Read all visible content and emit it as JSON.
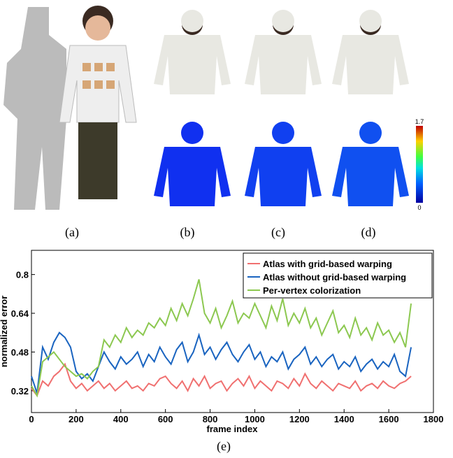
{
  "panel_captions": [
    "(a)",
    "(b)",
    "(c)",
    "(d)"
  ],
  "colorbar_ticks": [
    0,
    1.7
  ],
  "chart_caption": "(e)",
  "chart_data": {
    "type": "line",
    "xlabel": "frame index",
    "ylabel": "normalized error",
    "xlim": [
      0,
      1800
    ],
    "xticks": [
      0,
      200,
      400,
      600,
      800,
      1000,
      1200,
      1400,
      1600,
      1800
    ],
    "ylim": [
      0.23,
      0.9
    ],
    "yticks": [
      0.32,
      0.48,
      0.64,
      0.8
    ],
    "legend": "upper right",
    "x": [
      0,
      25,
      50,
      75,
      100,
      125,
      150,
      175,
      200,
      225,
      250,
      275,
      300,
      325,
      350,
      375,
      400,
      425,
      450,
      475,
      500,
      525,
      550,
      575,
      600,
      625,
      650,
      675,
      700,
      725,
      750,
      775,
      800,
      825,
      850,
      875,
      900,
      925,
      950,
      975,
      1000,
      1025,
      1050,
      1075,
      1100,
      1125,
      1150,
      1175,
      1200,
      1225,
      1250,
      1275,
      1300,
      1325,
      1350,
      1375,
      1400,
      1425,
      1450,
      1475,
      1500,
      1525,
      1550,
      1575,
      1600,
      1625,
      1650,
      1675,
      1700
    ],
    "series": [
      {
        "name": "Atlas with grid-based warping",
        "color": "#f07070",
        "values": [
          0.33,
          0.3,
          0.36,
          0.34,
          0.38,
          0.4,
          0.43,
          0.36,
          0.33,
          0.35,
          0.32,
          0.34,
          0.36,
          0.33,
          0.35,
          0.32,
          0.34,
          0.36,
          0.33,
          0.34,
          0.32,
          0.35,
          0.34,
          0.37,
          0.38,
          0.35,
          0.33,
          0.36,
          0.32,
          0.37,
          0.34,
          0.38,
          0.33,
          0.35,
          0.36,
          0.32,
          0.35,
          0.37,
          0.34,
          0.38,
          0.33,
          0.36,
          0.34,
          0.32,
          0.36,
          0.35,
          0.33,
          0.37,
          0.34,
          0.39,
          0.35,
          0.33,
          0.36,
          0.34,
          0.32,
          0.35,
          0.34,
          0.33,
          0.36,
          0.32,
          0.34,
          0.35,
          0.33,
          0.36,
          0.34,
          0.33,
          0.35,
          0.36,
          0.38
        ]
      },
      {
        "name": "Atlas without grid-based warping",
        "color": "#1a64c0",
        "values": [
          0.38,
          0.31,
          0.5,
          0.45,
          0.52,
          0.56,
          0.54,
          0.5,
          0.4,
          0.37,
          0.39,
          0.36,
          0.42,
          0.48,
          0.44,
          0.41,
          0.46,
          0.43,
          0.45,
          0.48,
          0.42,
          0.47,
          0.44,
          0.5,
          0.46,
          0.43,
          0.49,
          0.52,
          0.44,
          0.48,
          0.55,
          0.47,
          0.5,
          0.45,
          0.49,
          0.52,
          0.47,
          0.44,
          0.48,
          0.51,
          0.45,
          0.48,
          0.42,
          0.46,
          0.44,
          0.48,
          0.41,
          0.45,
          0.47,
          0.5,
          0.43,
          0.46,
          0.42,
          0.45,
          0.47,
          0.41,
          0.44,
          0.42,
          0.46,
          0.4,
          0.43,
          0.45,
          0.41,
          0.44,
          0.42,
          0.47,
          0.4,
          0.38,
          0.5
        ]
      },
      {
        "name": "Per-vertex colorization",
        "color": "#8cc850",
        "values": [
          0.34,
          0.3,
          0.44,
          0.46,
          0.48,
          0.45,
          0.42,
          0.4,
          0.38,
          0.39,
          0.37,
          0.4,
          0.42,
          0.53,
          0.5,
          0.55,
          0.52,
          0.58,
          0.54,
          0.57,
          0.55,
          0.6,
          0.58,
          0.62,
          0.59,
          0.66,
          0.61,
          0.68,
          0.63,
          0.7,
          0.78,
          0.64,
          0.6,
          0.66,
          0.58,
          0.63,
          0.69,
          0.6,
          0.64,
          0.62,
          0.68,
          0.63,
          0.58,
          0.67,
          0.61,
          0.7,
          0.59,
          0.64,
          0.6,
          0.66,
          0.58,
          0.62,
          0.55,
          0.6,
          0.65,
          0.56,
          0.59,
          0.54,
          0.62,
          0.55,
          0.58,
          0.53,
          0.6,
          0.55,
          0.57,
          0.52,
          0.56,
          0.5,
          0.68
        ]
      }
    ]
  }
}
